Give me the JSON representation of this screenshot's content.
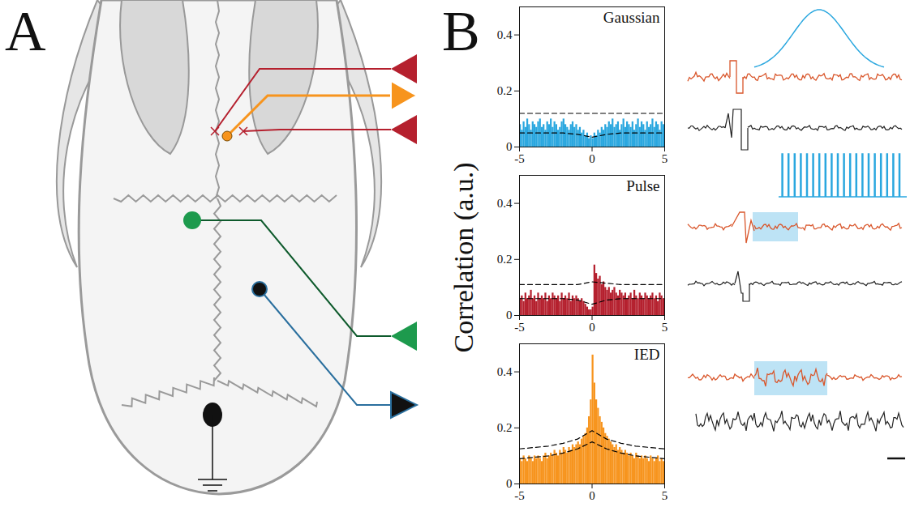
{
  "figure": {
    "panel_labels": [
      "A",
      "B"
    ],
    "y_label": "Correlation (a.u.)"
  },
  "chart_data": [
    {
      "type": "histogram",
      "title": "Gaussian",
      "color": "#2aa7df",
      "bins": [
        -5,
        -4.875,
        -4.75,
        -4.625,
        -4.5,
        -4.375,
        -4.25,
        -4.125,
        -4,
        -3.875,
        -3.75,
        -3.625,
        -3.5,
        -3.375,
        -3.25,
        -3.125,
        -3,
        -2.875,
        -2.75,
        -2.625,
        -2.5,
        -2.375,
        -2.25,
        -2.125,
        -2,
        -1.875,
        -1.75,
        -1.625,
        -1.5,
        -1.375,
        -1.25,
        -1.125,
        -1,
        -0.875,
        -0.75,
        -0.625,
        -0.5,
        -0.375,
        -0.25,
        -0.125,
        0,
        0.125,
        0.25,
        0.375,
        0.5,
        0.625,
        0.75,
        0.875,
        1,
        1.125,
        1.25,
        1.375,
        1.5,
        1.625,
        1.75,
        1.875,
        2,
        2.125,
        2.25,
        2.375,
        2.5,
        2.625,
        2.75,
        2.875,
        3,
        3.125,
        3.25,
        3.375,
        3.5,
        3.625,
        3.75,
        3.875,
        4,
        4.125,
        4.25,
        4.375,
        4.5,
        4.625,
        4.75,
        4.875,
        5
      ],
      "values": [
        0.08,
        0.06,
        0.09,
        0.07,
        0.1,
        0.08,
        0.06,
        0.09,
        0.08,
        0.07,
        0.09,
        0.1,
        0.07,
        0.08,
        0.06,
        0.09,
        0.08,
        0.1,
        0.07,
        0.09,
        0.08,
        0.06,
        0.07,
        0.09,
        0.1,
        0.08,
        0.07,
        0.06,
        0.08,
        0.09,
        0.07,
        0.08,
        0.06,
        0.07,
        0.05,
        0.06,
        0.04,
        0.05,
        0.03,
        0.04,
        0.03,
        0.05,
        0.04,
        0.06,
        0.05,
        0.07,
        0.06,
        0.08,
        0.07,
        0.09,
        0.08,
        0.1,
        0.07,
        0.08,
        0.09,
        0.06,
        0.08,
        0.1,
        0.07,
        0.09,
        0.08,
        0.07,
        0.09,
        0.06,
        0.08,
        0.1,
        0.07,
        0.09,
        0.08,
        0.06,
        0.09,
        0.07,
        0.08,
        0.1,
        0.07,
        0.09,
        0.08,
        0.06,
        0.09,
        0.08
      ],
      "series": [
        {
          "type": "line",
          "line_style": "dashed",
          "color": "#000000",
          "x": [
            -5,
            -4,
            -3,
            -2,
            -1,
            0,
            1,
            2,
            3,
            4,
            5
          ],
          "values": [
            0.12,
            0.12,
            0.12,
            0.12,
            0.12,
            0.12,
            0.12,
            0.12,
            0.12,
            0.12,
            0.12
          ]
        },
        {
          "type": "line",
          "line_style": "dashed",
          "color": "#000000",
          "x": [
            -5,
            -4,
            -3,
            -2,
            -1,
            0,
            1,
            2,
            3,
            4,
            5
          ],
          "values": [
            0.05,
            0.05,
            0.05,
            0.05,
            0.045,
            0.035,
            0.045,
            0.05,
            0.05,
            0.05,
            0.05
          ]
        }
      ],
      "xlim": [
        -5,
        5
      ],
      "xticks": [
        -5,
        0,
        5
      ],
      "ylim": [
        0,
        0.5
      ],
      "yticks": [
        0,
        0.2,
        0.4
      ]
    },
    {
      "type": "histogram",
      "title": "Pulse",
      "color": "#b5202e",
      "bins": [
        -5,
        -4.875,
        -4.75,
        -4.625,
        -4.5,
        -4.375,
        -4.25,
        -4.125,
        -4,
        -3.875,
        -3.75,
        -3.625,
        -3.5,
        -3.375,
        -3.25,
        -3.125,
        -3,
        -2.875,
        -2.75,
        -2.625,
        -2.5,
        -2.375,
        -2.25,
        -2.125,
        -2,
        -1.875,
        -1.75,
        -1.625,
        -1.5,
        -1.375,
        -1.25,
        -1.125,
        -1,
        -0.875,
        -0.75,
        -0.625,
        -0.5,
        -0.375,
        -0.25,
        -0.125,
        0,
        0.125,
        0.25,
        0.375,
        0.5,
        0.625,
        0.75,
        0.875,
        1,
        1.125,
        1.25,
        1.375,
        1.5,
        1.625,
        1.75,
        1.875,
        2,
        2.125,
        2.25,
        2.375,
        2.5,
        2.625,
        2.75,
        2.875,
        3,
        3.125,
        3.25,
        3.375,
        3.5,
        3.625,
        3.75,
        3.875,
        4,
        4.125,
        4.25,
        4.375,
        4.5,
        4.625,
        4.75,
        4.875,
        5
      ],
      "values": [
        0.06,
        0.07,
        0.05,
        0.08,
        0.06,
        0.07,
        0.09,
        0.06,
        0.07,
        0.05,
        0.08,
        0.06,
        0.07,
        0.06,
        0.08,
        0.05,
        0.07,
        0.06,
        0.08,
        0.07,
        0.06,
        0.07,
        0.05,
        0.08,
        0.06,
        0.07,
        0.06,
        0.08,
        0.05,
        0.07,
        0.06,
        0.07,
        0.06,
        0.05,
        0.06,
        0.05,
        0.04,
        0.03,
        0.02,
        0.02,
        0.03,
        0.18,
        0.15,
        0.13,
        0.14,
        0.11,
        0.12,
        0.1,
        0.09,
        0.1,
        0.08,
        0.09,
        0.1,
        0.08,
        0.07,
        0.09,
        0.08,
        0.07,
        0.08,
        0.06,
        0.07,
        0.08,
        0.06,
        0.09,
        0.07,
        0.06,
        0.08,
        0.07,
        0.06,
        0.08,
        0.07,
        0.06,
        0.07,
        0.08,
        0.06,
        0.07,
        0.05,
        0.08,
        0.07,
        0.06
      ],
      "series": [
        {
          "type": "line",
          "line_style": "dashed",
          "color": "#000000",
          "x": [
            -5,
            -4,
            -3,
            -2,
            -1,
            0,
            1,
            2,
            3,
            4,
            5
          ],
          "values": [
            0.11,
            0.11,
            0.11,
            0.11,
            0.11,
            0.12,
            0.115,
            0.11,
            0.11,
            0.11,
            0.11
          ]
        },
        {
          "type": "line",
          "line_style": "dashed",
          "color": "#000000",
          "x": [
            -5,
            -4,
            -3,
            -2,
            -1,
            0,
            1,
            2,
            3,
            4,
            5
          ],
          "values": [
            0.06,
            0.06,
            0.06,
            0.06,
            0.055,
            0.04,
            0.055,
            0.06,
            0.06,
            0.06,
            0.06
          ]
        }
      ],
      "xlim": [
        -5,
        5
      ],
      "xticks": [
        -5,
        0,
        5
      ],
      "ylim": [
        0,
        0.5
      ],
      "yticks": [
        0,
        0.2,
        0.4
      ]
    },
    {
      "type": "histogram",
      "title": "IED",
      "color": "#f7941d",
      "bins": [
        -5,
        -4.875,
        -4.75,
        -4.625,
        -4.5,
        -4.375,
        -4.25,
        -4.125,
        -4,
        -3.875,
        -3.75,
        -3.625,
        -3.5,
        -3.375,
        -3.25,
        -3.125,
        -3,
        -2.875,
        -2.75,
        -2.625,
        -2.5,
        -2.375,
        -2.25,
        -2.125,
        -2,
        -1.875,
        -1.75,
        -1.625,
        -1.5,
        -1.375,
        -1.25,
        -1.125,
        -1,
        -0.875,
        -0.75,
        -0.625,
        -0.5,
        -0.375,
        -0.25,
        -0.125,
        0,
        0.125,
        0.25,
        0.375,
        0.5,
        0.625,
        0.75,
        0.875,
        1,
        1.125,
        1.25,
        1.375,
        1.5,
        1.625,
        1.75,
        1.875,
        2,
        2.125,
        2.25,
        2.375,
        2.5,
        2.625,
        2.75,
        2.875,
        3,
        3.125,
        3.25,
        3.375,
        3.5,
        3.625,
        3.75,
        3.875,
        4,
        4.125,
        4.25,
        4.375,
        4.5,
        4.625,
        4.75,
        4.875,
        5
      ],
      "values": [
        0.09,
        0.08,
        0.1,
        0.09,
        0.08,
        0.1,
        0.09,
        0.08,
        0.1,
        0.09,
        0.1,
        0.09,
        0.08,
        0.1,
        0.11,
        0.09,
        0.1,
        0.11,
        0.1,
        0.12,
        0.11,
        0.1,
        0.12,
        0.11,
        0.13,
        0.12,
        0.11,
        0.13,
        0.12,
        0.14,
        0.13,
        0.14,
        0.15,
        0.14,
        0.16,
        0.17,
        0.18,
        0.2,
        0.24,
        0.3,
        0.46,
        0.36,
        0.3,
        0.27,
        0.24,
        0.22,
        0.2,
        0.18,
        0.17,
        0.16,
        0.15,
        0.14,
        0.13,
        0.14,
        0.12,
        0.13,
        0.12,
        0.11,
        0.12,
        0.11,
        0.1,
        0.11,
        0.1,
        0.09,
        0.11,
        0.1,
        0.09,
        0.1,
        0.09,
        0.1,
        0.09,
        0.08,
        0.1,
        0.09,
        0.08,
        0.09,
        0.1,
        0.08,
        0.09,
        0.08
      ],
      "series": [
        {
          "type": "line",
          "line_style": "dashed",
          "color": "#000000",
          "x": [
            -5,
            -4,
            -3,
            -2,
            -1,
            0,
            1,
            2,
            3,
            4,
            5
          ],
          "values": [
            0.125,
            0.13,
            0.135,
            0.145,
            0.16,
            0.19,
            0.16,
            0.145,
            0.135,
            0.13,
            0.125
          ]
        },
        {
          "type": "line",
          "line_style": "dashed",
          "color": "#000000",
          "x": [
            -5,
            -4,
            -3,
            -2,
            -1,
            0,
            1,
            2,
            3,
            4,
            5
          ],
          "values": [
            0.09,
            0.095,
            0.1,
            0.11,
            0.125,
            0.15,
            0.125,
            0.11,
            0.1,
            0.095,
            0.09
          ]
        }
      ],
      "xlim": [
        -5,
        5
      ],
      "xticks": [
        -5,
        0,
        5
      ],
      "ylim": [
        0,
        0.5
      ],
      "yticks": [
        0,
        0.2,
        0.4
      ]
    }
  ]
}
